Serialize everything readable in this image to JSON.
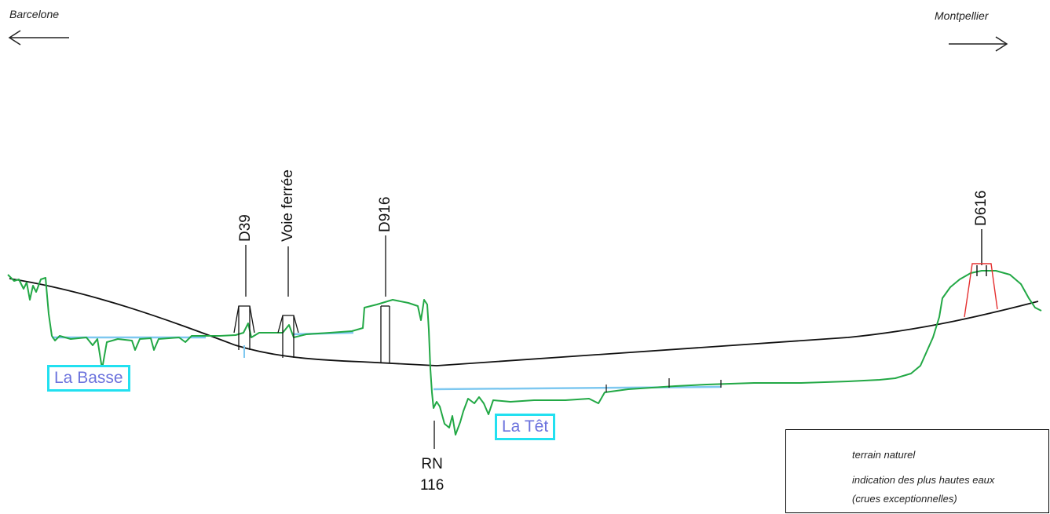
{
  "directions": {
    "left": "Barcelone",
    "right": "Montpellier"
  },
  "roads": {
    "d39": "D39",
    "voie_ferree": "Voie ferrée",
    "d916": "D916",
    "d616": "D616",
    "rn116_line1": "RN",
    "rn116_line2": "116"
  },
  "rivers": {
    "basse": "La Basse",
    "tet": "La Têt"
  },
  "legend": {
    "terrain": "terrain naturel",
    "high_water_line1": "indication des plus hautes eaux",
    "high_water_line2": "(crues exceptionnelles)"
  },
  "colors": {
    "terrain": "#22a845",
    "high_water": "#7ec8f0",
    "road_profile": "#111111",
    "bridge_new": "#e53030",
    "river_box_border": "#22e0f0",
    "river_text": "#6b72dd"
  }
}
